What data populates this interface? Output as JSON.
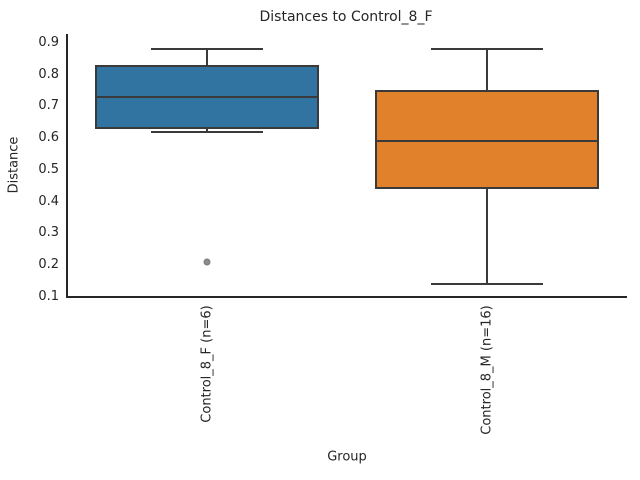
{
  "chart_data": {
    "type": "box",
    "title": "Distances to Control_8_F",
    "xlabel": "Group",
    "ylabel": "Distance",
    "ylim": [
      0.1,
      0.9
    ],
    "yticks": [
      0.9,
      0.8,
      0.7,
      0.6,
      0.5,
      0.4,
      0.3,
      0.2,
      0.1
    ],
    "categories": [
      "Control_8_F (n=6)",
      "Control_8_M (n=16)"
    ],
    "series": [
      {
        "name": "Control_8_F (n=6)",
        "whisker_low": 0.62,
        "q1": 0.63,
        "median": 0.73,
        "q3": 0.83,
        "whisker_high": 0.88,
        "outliers": [
          0.21
        ],
        "color": "#3274a1"
      },
      {
        "name": "Control_8_M (n=16)",
        "whisker_low": 0.14,
        "q1": 0.44,
        "median": 0.59,
        "q3": 0.75,
        "whisker_high": 0.88,
        "outliers": [],
        "color": "#e1812c"
      }
    ],
    "legend": null,
    "grid": false,
    "colors": {
      "line": "#3a3a3a",
      "text": "#262626",
      "flier": "#8c8c8c"
    }
  }
}
